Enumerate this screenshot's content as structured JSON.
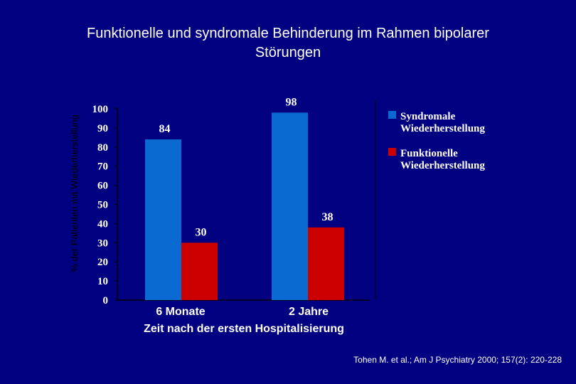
{
  "slide": {
    "title_line1": "Funktionelle und syndromale Behinderung im Rahmen bipolarer",
    "title_line2": "Störungen",
    "citation": "Tohen M. et al.; Am J Psychiatry 2000; 157(2): 220-228"
  },
  "chart_data": {
    "type": "bar",
    "title": "",
    "xlabel": "Zeit nach der ersten Hospitalisierung",
    "ylabel": "% der Patienten mit Wiederherstellung",
    "categories": [
      "6 Monate",
      "2 Jahre"
    ],
    "ylim": [
      0,
      100
    ],
    "yticks": [
      "0",
      "10",
      "20",
      "30",
      "40",
      "50",
      "60",
      "70",
      "80",
      "90",
      "100"
    ],
    "series": [
      {
        "name": "Syndromale Wiederherstellung",
        "name_lines": [
          "Syndromale",
          "Wiederherstellung"
        ],
        "values": [
          84,
          98
        ],
        "color": "#0a6ad2"
      },
      {
        "name": "Funktionelle Wiederherstellung",
        "name_lines": [
          "Funktionelle",
          "Wiederherstellung"
        ],
        "values": [
          30,
          38
        ],
        "color": "#cc0000"
      }
    ],
    "data_labels": [
      [
        "84",
        "98"
      ],
      [
        "30",
        "38"
      ]
    ],
    "legend_position": "right",
    "grid": false
  }
}
